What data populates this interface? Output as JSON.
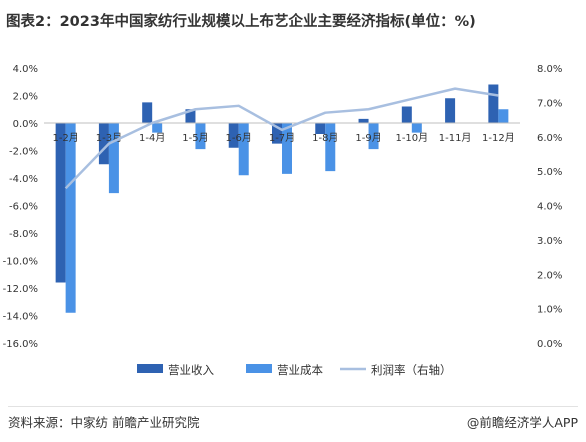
{
  "title": "图表2：2023年中国家纺行业规模以上布艺企业主要经济指标(单位：%)",
  "source_text": "资料来源：中家纺 前瞻产业研究院",
  "brand_text": "@前瞻经济学人APP",
  "colors": {
    "revenue": "#2e62b2",
    "cost": "#4a92e6",
    "profit": "#a8bfe0",
    "axis": "#bfbfbf"
  },
  "chart_data": {
    "type": "bar",
    "title": "图表2：2023年中国家纺行业规模以上布艺企业主要经济指标(单位：%)",
    "categories": [
      "1-2月",
      "1-3月",
      "1-4月",
      "1-5月",
      "1-6月",
      "1-7月",
      "1-8月",
      "1-9月",
      "1-10月",
      "1-11月",
      "1-12月"
    ],
    "y_left": {
      "ylim": [
        -16,
        4
      ],
      "ticks": [
        "4.0%",
        "2.0%",
        "0.0%",
        "-2.0%",
        "-4.0%",
        "-6.0%",
        "-8.0%",
        "-10.0%",
        "-12.0%",
        "-14.0%",
        "-16.0%"
      ]
    },
    "y_right": {
      "ylim": [
        0,
        8
      ],
      "ticks": [
        "8.0%",
        "7.0%",
        "6.0%",
        "5.0%",
        "4.0%",
        "3.0%",
        "2.0%",
        "1.0%",
        "0.0%"
      ]
    },
    "series": [
      {
        "name": "营业收入",
        "type": "bar",
        "axis": "left",
        "values": [
          -11.6,
          -3.0,
          1.5,
          1.0,
          -1.8,
          -1.5,
          -0.8,
          0.3,
          1.2,
          1.8,
          2.8
        ]
      },
      {
        "name": "营业成本",
        "type": "bar",
        "axis": "left",
        "values": [
          -13.8,
          -5.1,
          -0.7,
          -1.9,
          -3.8,
          -3.7,
          -3.5,
          -1.9,
          -0.7,
          0.0,
          1.0
        ]
      },
      {
        "name": "利润率（右轴）",
        "type": "line",
        "axis": "right",
        "values": [
          4.5,
          5.8,
          6.4,
          6.8,
          6.9,
          6.2,
          6.7,
          6.8,
          7.1,
          7.4,
          7.2
        ]
      }
    ],
    "legend_position": "bottom",
    "grid": false
  }
}
